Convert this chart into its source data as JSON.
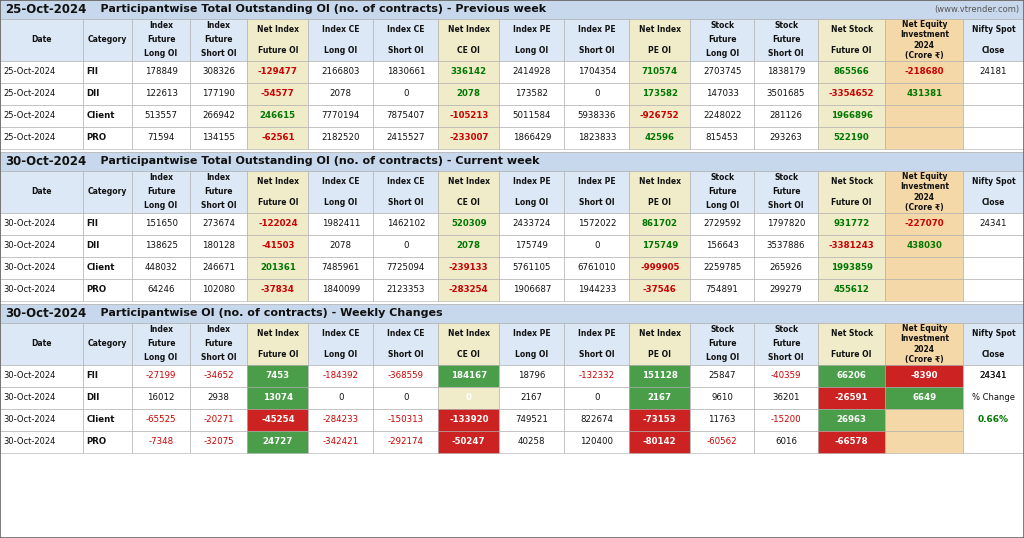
{
  "section1_date": "25-Oct-2024",
  "section1_title_rest": "    Participantwise Total Outstanding OI (no. of contracts) - Previous week",
  "section1_subtitle": "(www.vtrender.com)",
  "section2_date": "30-Oct-2024",
  "section2_title_rest": "    Participantwise Total Outstanding OI (no. of contracts) - Current week",
  "section3_date": "30-Oct-2024",
  "section3_title_rest": "    Participantwise OI (no. of contracts) - Weekly Changes",
  "col_headers": [
    "Date",
    "Category",
    "Index\nFuture\nLong OI",
    "Index\nFuture\nShort OI",
    "Net Index\nFuture OI",
    "Index CE\nLong OI",
    "Index CE\nShort OI",
    "Net Index\nCE OI",
    "Index PE\nLong OI",
    "Index PE\nShort OI",
    "Net Index\nPE OI",
    "Stock\nFuture\nLong OI",
    "Stock\nFuture\nShort OI",
    "Net Stock\nFuture OI",
    "Net Equity\nInvestment\n2024\n(Crore ₹)",
    "Nifty Spot\nClose"
  ],
  "section1_rows": [
    [
      "25-Oct-2024",
      "FII",
      "178849",
      "308326",
      "-129477",
      "2166803",
      "1830661",
      "336142",
      "2414928",
      "1704354",
      "710574",
      "2703745",
      "1838179",
      "865566",
      "-218680",
      "24181"
    ],
    [
      "25-Oct-2024",
      "DII",
      "122613",
      "177190",
      "-54577",
      "2078",
      "0",
      "2078",
      "173582",
      "0",
      "173582",
      "147033",
      "3501685",
      "-3354652",
      "431381",
      ""
    ],
    [
      "25-Oct-2024",
      "Client",
      "513557",
      "266942",
      "246615",
      "7770194",
      "7875407",
      "-105213",
      "5011584",
      "5938336",
      "-926752",
      "2248022",
      "281126",
      "1966896",
      "",
      ""
    ],
    [
      "25-Oct-2024",
      "PRO",
      "71594",
      "134155",
      "-62561",
      "2182520",
      "2415527",
      "-233007",
      "1866429",
      "1823833",
      "42596",
      "815453",
      "293263",
      "522190",
      "",
      ""
    ]
  ],
  "section2_rows": [
    [
      "30-Oct-2024",
      "FII",
      "151650",
      "273674",
      "-122024",
      "1982411",
      "1462102",
      "520309",
      "2433724",
      "1572022",
      "861702",
      "2729592",
      "1797820",
      "931772",
      "-227070",
      "24341"
    ],
    [
      "30-Oct-2024",
      "DII",
      "138625",
      "180128",
      "-41503",
      "2078",
      "0",
      "2078",
      "175749",
      "0",
      "175749",
      "156643",
      "3537886",
      "-3381243",
      "438030",
      ""
    ],
    [
      "30-Oct-2024",
      "Client",
      "448032",
      "246671",
      "201361",
      "7485961",
      "7725094",
      "-239133",
      "5761105",
      "6761010",
      "-999905",
      "2259785",
      "265926",
      "1993859",
      "",
      ""
    ],
    [
      "30-Oct-2024",
      "PRO",
      "64246",
      "102080",
      "-37834",
      "1840099",
      "2123353",
      "-283254",
      "1906687",
      "1944233",
      "-37546",
      "754891",
      "299279",
      "455612",
      "",
      ""
    ]
  ],
  "section3_rows": [
    [
      "30-Oct-2024",
      "FII",
      "-27199",
      "-34652",
      "7453",
      "-184392",
      "-368559",
      "184167",
      "18796",
      "-132332",
      "151128",
      "25847",
      "-40359",
      "66206",
      "-8390",
      "24341"
    ],
    [
      "30-Oct-2024",
      "DII",
      "16012",
      "2938",
      "13074",
      "0",
      "0",
      "0",
      "2167",
      "0",
      "2167",
      "9610",
      "36201",
      "-26591",
      "6649",
      ""
    ],
    [
      "30-Oct-2024",
      "Client",
      "-65525",
      "-20271",
      "-45254",
      "-284233",
      "-150313",
      "-133920",
      "749521",
      "822674",
      "-73153",
      "11763",
      "-15200",
      "26963",
      "",
      ""
    ],
    [
      "30-Oct-2024",
      "PRO",
      "-7348",
      "-32075",
      "24727",
      "-342421",
      "-292174",
      "-50247",
      "40258",
      "120400",
      "-80142",
      "-60562",
      "6016",
      "-66578",
      "",
      ""
    ]
  ],
  "pct_change_label": "% Change",
  "pct_change_value": "0.66%",
  "HEADER_BG": "#c8d8ec",
  "COL_HDR_BG": "#dce8f6",
  "NET_COL_BG": "#f0ecca",
  "NET_EQ_BG": "#f5d8a8",
  "ROW_BG": "#ffffff",
  "GREEN_BG": "#4a9e4a",
  "RED_BG": "#cc2222",
  "LIGHT_RED_BG": "#f0c8c8",
  "RED_TEXT": "#cc0000",
  "GREEN_TEXT": "#007700",
  "BLACK_TEXT": "#111111",
  "WHITE_TEXT": "#ffffff",
  "BORDER_COLOR": "#aaaaaa"
}
